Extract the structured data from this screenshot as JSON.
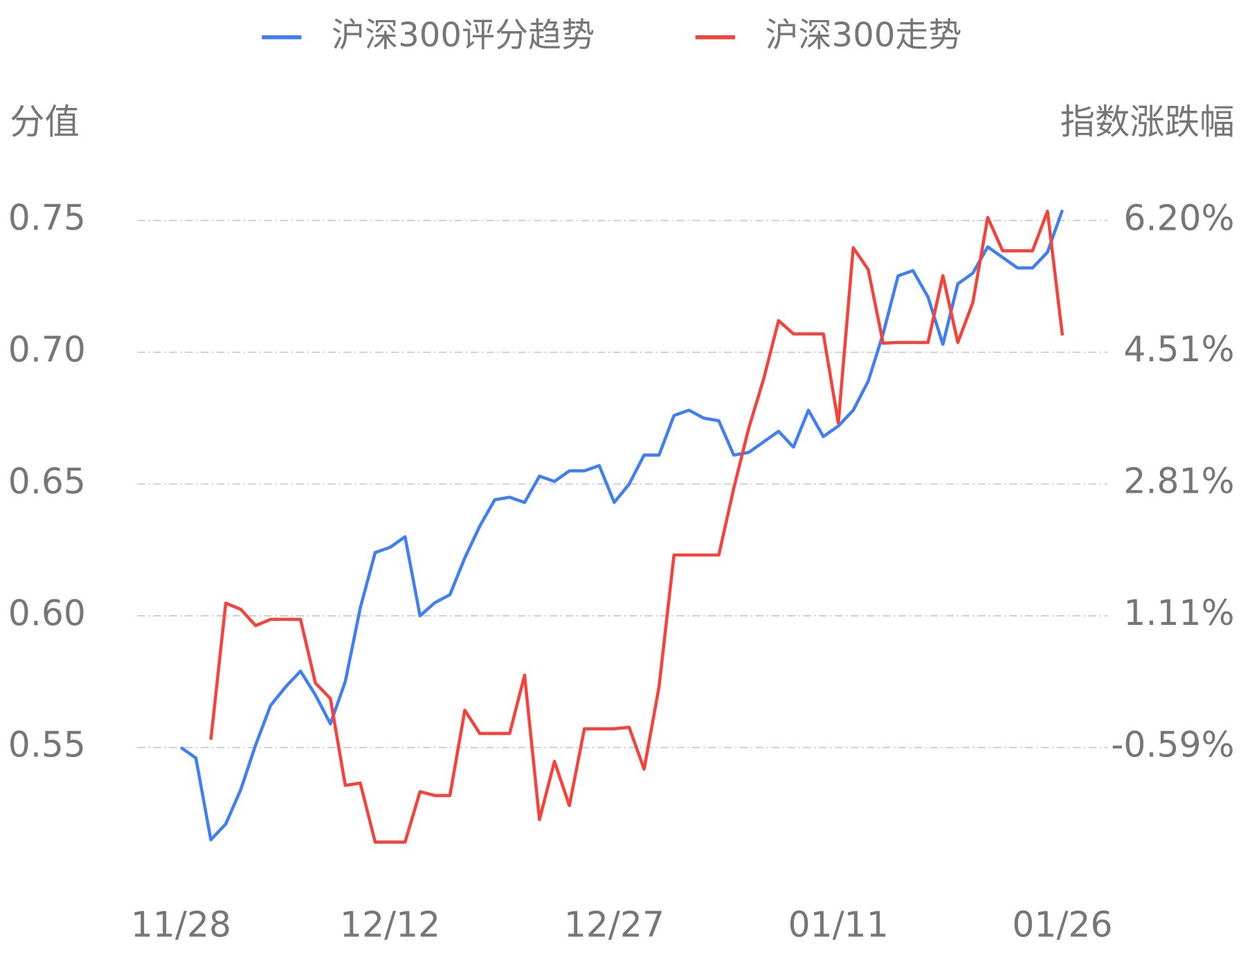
{
  "chart_data": {
    "type": "line",
    "y_title": "分值",
    "y2_title": "指数涨跌幅",
    "categories": [
      "11/28",
      null,
      null,
      null,
      null,
      null,
      null,
      null,
      null,
      null,
      null,
      null,
      null,
      null,
      "12/12",
      null,
      null,
      null,
      null,
      null,
      null,
      null,
      null,
      null,
      null,
      null,
      null,
      null,
      null,
      "12/27",
      null,
      null,
      null,
      null,
      null,
      null,
      null,
      null,
      null,
      null,
      null,
      null,
      null,
      null,
      "01/11",
      null,
      null,
      null,
      null,
      null,
      null,
      null,
      null,
      null,
      null,
      null,
      null,
      null,
      null,
      "01/26"
    ],
    "ylim": [
      0.5,
      0.78
    ],
    "yticks": [
      0.55,
      {
        "value": 0.6,
        "label": "0.60"
      },
      0.65,
      {
        "value": 0.7,
        "label": "0.70"
      },
      0.75
    ],
    "y2lim": [
      -2.29,
      7.22
    ],
    "y2ticks": [
      {
        "value": -0.59,
        "label": "-0.59%"
      },
      {
        "value": 1.11,
        "label": "1.11%"
      },
      {
        "value": 2.81,
        "label": "2.81%"
      },
      {
        "value": 4.51,
        "label": "4.51%"
      },
      {
        "value": 6.2,
        "label": "6.20%"
      }
    ],
    "grid": true,
    "series": [
      {
        "name": "沪深300评分趋势",
        "color": "#3f7ff2",
        "axis": "y",
        "values": [
          0.55,
          0.546,
          0.515,
          0.521,
          0.534,
          0.551,
          0.566,
          0.573,
          0.579,
          0.57,
          0.559,
          0.575,
          0.603,
          0.624,
          0.626,
          0.63,
          0.6,
          0.605,
          0.608,
          0.622,
          0.634,
          0.644,
          0.645,
          0.643,
          0.653,
          0.651,
          0.655,
          0.655,
          0.657,
          0.643,
          0.65,
          0.661,
          0.661,
          0.676,
          0.678,
          0.675,
          0.674,
          0.661,
          0.662,
          0.666,
          0.67,
          0.664,
          0.678,
          0.668,
          0.672,
          0.678,
          0.689,
          0.707,
          0.729,
          0.731,
          0.721,
          0.703,
          0.726,
          0.73,
          0.74,
          0.736,
          0.732,
          0.732,
          0.738,
          0.754
        ]
      },
      {
        "name": "沪深300走势",
        "color": "#f5433b",
        "axis": "y2",
        "values": [
          null,
          null,
          -0.49,
          1.27,
          1.19,
          0.98,
          1.06,
          1.06,
          1.06,
          0.24,
          0.04,
          -1.08,
          -1.05,
          -1.81,
          -1.81,
          -1.81,
          -1.16,
          -1.21,
          -1.21,
          -0.11,
          -0.41,
          -0.41,
          -0.41,
          0.34,
          -1.52,
          -0.77,
          -1.34,
          -0.35,
          -0.35,
          -0.35,
          -0.33,
          -0.87,
          0.19,
          1.89,
          1.89,
          1.89,
          1.89,
          2.75,
          3.52,
          4.16,
          4.91,
          4.74,
          4.74,
          4.74,
          3.59,
          5.85,
          5.57,
          4.62,
          4.63,
          4.63,
          4.63,
          5.49,
          4.63,
          5.14,
          6.24,
          5.81,
          5.81,
          5.81,
          6.32,
          4.72
        ]
      }
    ]
  }
}
